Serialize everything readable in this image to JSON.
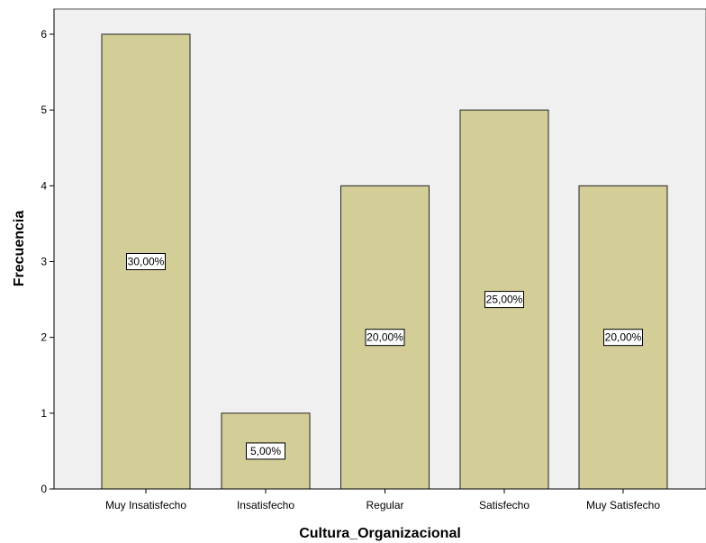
{
  "chart_data": {
    "type": "bar",
    "title": "",
    "xlabel": "Cultura_Organizacional",
    "ylabel": "Frecuencia",
    "categories": [
      "Muy Insatisfecho",
      "Insatisfecho",
      "Regular",
      "Satisfecho",
      "Muy Satisfecho"
    ],
    "values": [
      6,
      1,
      4,
      5,
      4
    ],
    "data_labels": [
      "30,00%",
      "5,00%",
      "20,00%",
      "25,00%",
      "20,00%"
    ],
    "ylim": [
      0,
      6
    ],
    "yticks": [
      "0",
      "1",
      "2",
      "3",
      "4",
      "5",
      "6"
    ],
    "grid": false,
    "legend": "none",
    "colors": {
      "plot_background": "#f0f0f0",
      "bar_fill": "#d3ce97",
      "bar_stroke": "#222222",
      "label_box_fill": "#ffffff"
    }
  }
}
